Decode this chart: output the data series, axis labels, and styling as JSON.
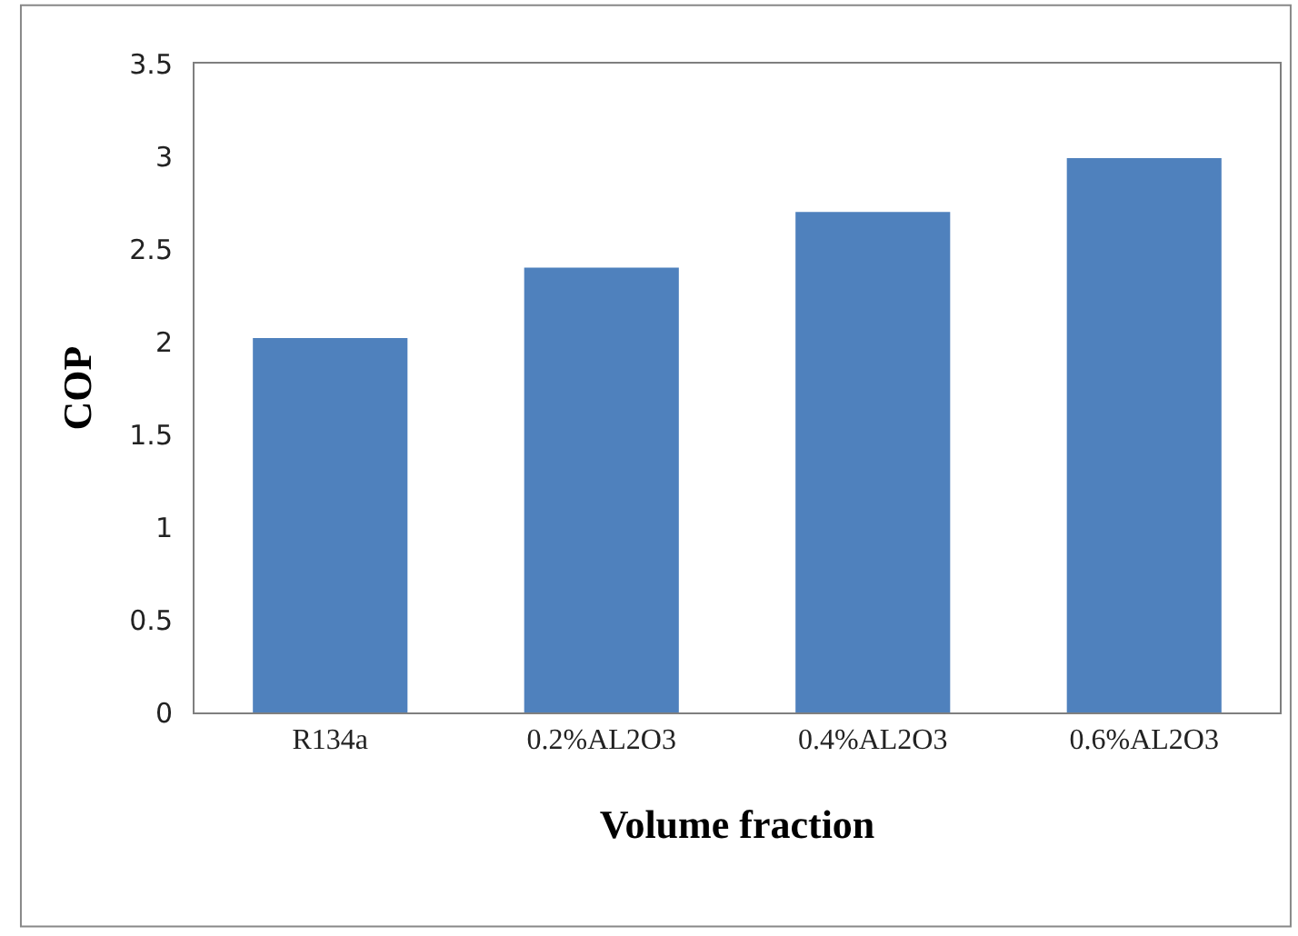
{
  "chart_data": {
    "type": "bar",
    "xlabel": "Volume fraction",
    "ylabel": "COP",
    "categories": [
      "R134a",
      "0.2%AL2O3",
      "0.4%AL2O3",
      "0.6%AL2O3"
    ],
    "values": [
      2.02,
      2.4,
      2.7,
      2.99
    ],
    "color": "#4f81bd",
    "ylim": [
      0,
      3.5
    ],
    "yticks": [
      0,
      0.5,
      1,
      1.5,
      2,
      2.5,
      3,
      3.5
    ],
    "grid": false
  }
}
